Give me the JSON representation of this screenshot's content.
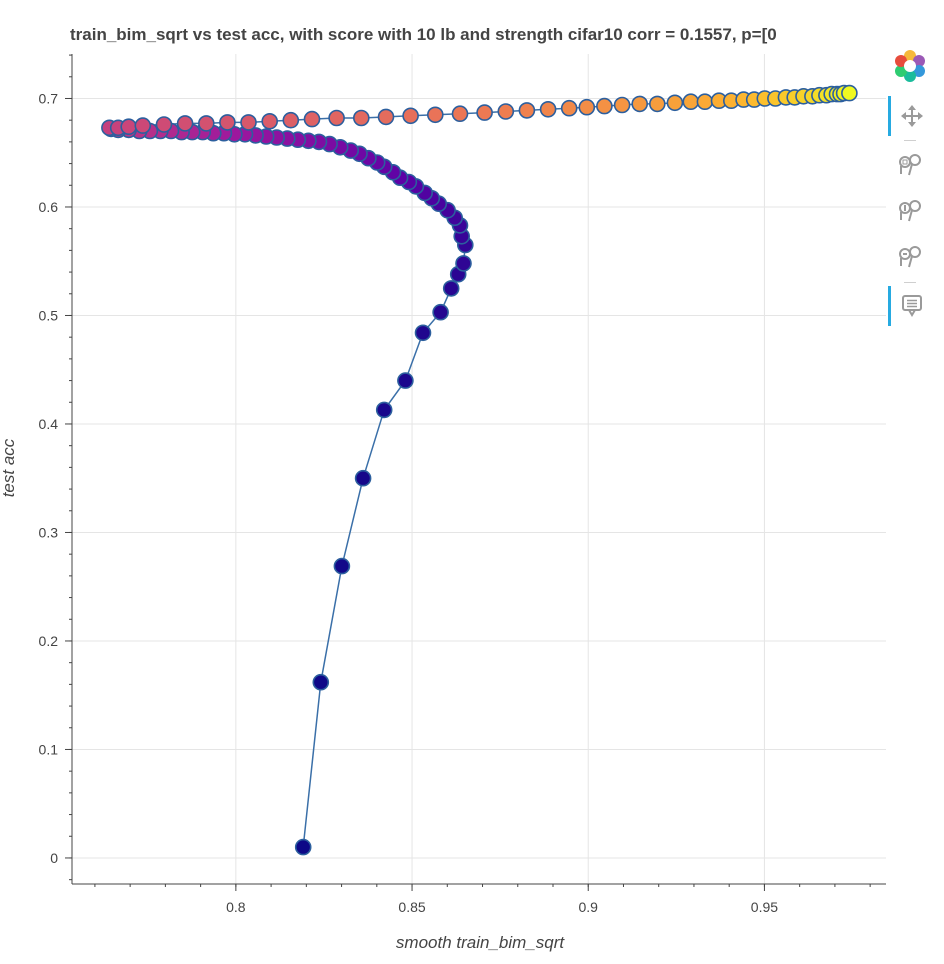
{
  "toolbar": {
    "items": [
      {
        "name": "bokeh-logo",
        "icon": "bokeh-logo-icon"
      },
      {
        "name": "pan-tool",
        "icon": "pan-icon",
        "active": true
      },
      {
        "name": "box-zoom-tool",
        "icon": "box-zoom-icon"
      },
      {
        "name": "wheel-zoom-tool",
        "icon": "wheel-zoom-icon"
      },
      {
        "name": "zoom-tool",
        "icon": "zoom-icon"
      },
      {
        "name": "hover-tool",
        "icon": "hover-tooltip-icon",
        "active": true
      }
    ]
  },
  "chart_data": {
    "type": "scatter",
    "title": "train_bim_sqrt vs test acc, with score  with 10 lb and strength cifar10  corr = 0.1557, p=[0",
    "xlabel": "smooth train_bim_sqrt",
    "ylabel": "test acc",
    "x_ticks": [
      "0.8",
      "0.85",
      "0.9",
      "0.95"
    ],
    "y_ticks": [
      "0",
      "0.1",
      "0.2",
      "0.3",
      "0.4",
      "0.5",
      "0.6",
      "0.7"
    ],
    "xlim": [
      0.7535,
      0.9845
    ],
    "ylim": [
      -0.024,
      0.741
    ],
    "grid": true,
    "line_color": "#3a6fa8",
    "marker_edge_color": "#2c5f9e",
    "colormap": [
      "#0d0887",
      "#5c01a6",
      "#9c179e",
      "#cc4778",
      "#ed7953",
      "#fdb42f",
      "#f0f921"
    ],
    "points": [
      [
        0.8191,
        0.01
      ],
      [
        0.8241,
        0.162
      ],
      [
        0.8301,
        0.269
      ],
      [
        0.8361,
        0.35
      ],
      [
        0.8421,
        0.413
      ],
      [
        0.8481,
        0.44
      ],
      [
        0.8531,
        0.484
      ],
      [
        0.8581,
        0.503
      ],
      [
        0.8611,
        0.525
      ],
      [
        0.8631,
        0.538
      ],
      [
        0.8646,
        0.548
      ],
      [
        0.8651,
        0.565
      ],
      [
        0.8641,
        0.573
      ],
      [
        0.8636,
        0.583
      ],
      [
        0.8621,
        0.59
      ],
      [
        0.8601,
        0.597
      ],
      [
        0.8576,
        0.603
      ],
      [
        0.8556,
        0.608
      ],
      [
        0.8536,
        0.613
      ],
      [
        0.8511,
        0.619
      ],
      [
        0.8491,
        0.623
      ],
      [
        0.8466,
        0.627
      ],
      [
        0.8446,
        0.632
      ],
      [
        0.8421,
        0.637
      ],
      [
        0.8401,
        0.641
      ],
      [
        0.8376,
        0.645
      ],
      [
        0.8351,
        0.649
      ],
      [
        0.8326,
        0.652
      ],
      [
        0.8296,
        0.655
      ],
      [
        0.8266,
        0.658
      ],
      [
        0.8236,
        0.66
      ],
      [
        0.8206,
        0.661
      ],
      [
        0.8176,
        0.662
      ],
      [
        0.8146,
        0.663
      ],
      [
        0.8116,
        0.664
      ],
      [
        0.8086,
        0.665
      ],
      [
        0.8056,
        0.666
      ],
      [
        0.8026,
        0.667
      ],
      [
        0.7996,
        0.667
      ],
      [
        0.7966,
        0.668
      ],
      [
        0.7936,
        0.668
      ],
      [
        0.7906,
        0.669
      ],
      [
        0.7876,
        0.669
      ],
      [
        0.7846,
        0.669
      ],
      [
        0.7816,
        0.67
      ],
      [
        0.7786,
        0.67
      ],
      [
        0.7756,
        0.67
      ],
      [
        0.7726,
        0.67
      ],
      [
        0.7696,
        0.671
      ],
      [
        0.7666,
        0.671
      ],
      [
        0.7646,
        0.672
      ],
      [
        0.7641,
        0.673
      ],
      [
        0.7666,
        0.673
      ],
      [
        0.7696,
        0.674
      ],
      [
        0.7736,
        0.675
      ],
      [
        0.7796,
        0.676
      ],
      [
        0.7856,
        0.677
      ],
      [
        0.7916,
        0.677
      ],
      [
        0.7976,
        0.678
      ],
      [
        0.8036,
        0.678
      ],
      [
        0.8096,
        0.679
      ],
      [
        0.8156,
        0.68
      ],
      [
        0.8216,
        0.681
      ],
      [
        0.8286,
        0.682
      ],
      [
        0.8356,
        0.682
      ],
      [
        0.8426,
        0.683
      ],
      [
        0.8496,
        0.684
      ],
      [
        0.8566,
        0.685
      ],
      [
        0.8636,
        0.686
      ],
      [
        0.8706,
        0.687
      ],
      [
        0.8766,
        0.688
      ],
      [
        0.8826,
        0.689
      ],
      [
        0.8886,
        0.69
      ],
      [
        0.8946,
        0.691
      ],
      [
        0.8996,
        0.692
      ],
      [
        0.9046,
        0.693
      ],
      [
        0.9096,
        0.694
      ],
      [
        0.9146,
        0.695
      ],
      [
        0.9196,
        0.695
      ],
      [
        0.9246,
        0.696
      ],
      [
        0.9291,
        0.697
      ],
      [
        0.9331,
        0.697
      ],
      [
        0.9371,
        0.698
      ],
      [
        0.9406,
        0.698
      ],
      [
        0.9441,
        0.699
      ],
      [
        0.9471,
        0.699
      ],
      [
        0.9501,
        0.7
      ],
      [
        0.9531,
        0.7
      ],
      [
        0.9561,
        0.701
      ],
      [
        0.9586,
        0.701
      ],
      [
        0.9611,
        0.702
      ],
      [
        0.9636,
        0.702
      ],
      [
        0.9656,
        0.703
      ],
      [
        0.9676,
        0.703
      ],
      [
        0.9691,
        0.704
      ],
      [
        0.9706,
        0.704
      ],
      [
        0.9716,
        0.704
      ],
      [
        0.9726,
        0.705
      ],
      [
        0.9741,
        0.705
      ]
    ]
  }
}
